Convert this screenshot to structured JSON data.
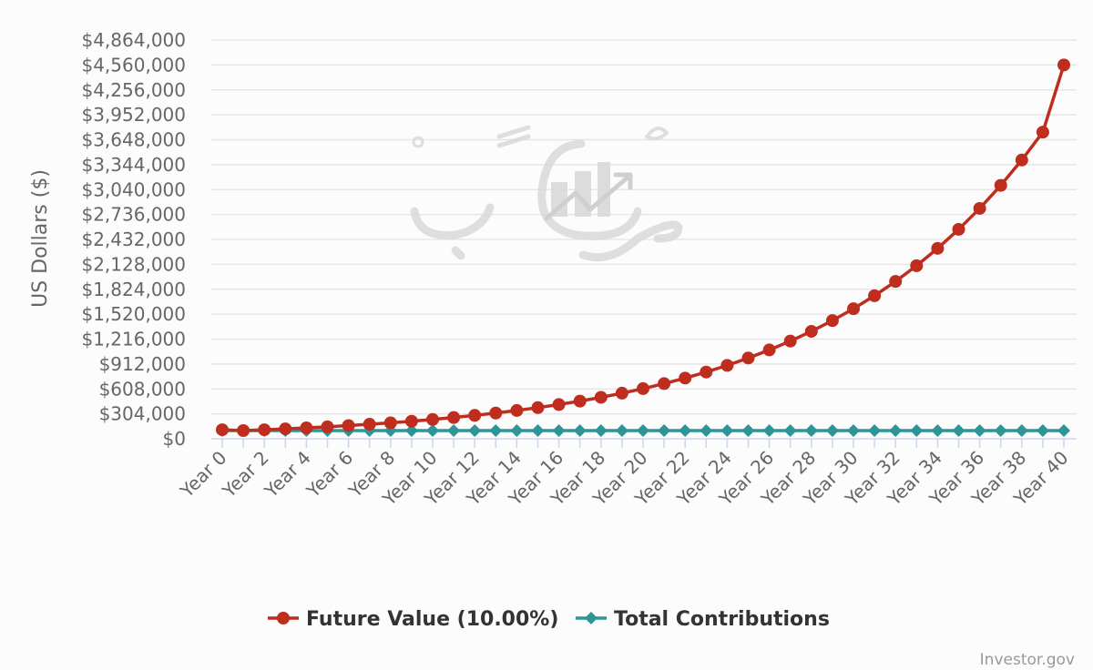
{
  "chart_data": {
    "type": "line",
    "title": "",
    "xlabel": "",
    "ylabel": "US Dollars ($)",
    "categories": [
      "Year 0",
      "Year 1",
      "Year 2",
      "Year 3",
      "Year 4",
      "Year 5",
      "Year 6",
      "Year 7",
      "Year 8",
      "Year 9",
      "Year 10",
      "Year 11",
      "Year 12",
      "Year 13",
      "Year 14",
      "Year 15",
      "Year 16",
      "Year 17",
      "Year 18",
      "Year 19",
      "Year 20",
      "Year 21",
      "Year 22",
      "Year 23",
      "Year 24",
      "Year 25",
      "Year 26",
      "Year 27",
      "Year 28",
      "Year 29",
      "Year 30",
      "Year 31",
      "Year 32",
      "Year 33",
      "Year 34",
      "Year 35",
      "Year 36",
      "Year 37",
      "Year 38",
      "Year 39",
      "Year 40"
    ],
    "x_tick_labels": [
      "Year 0",
      "Year 2",
      "Year 4",
      "Year 6",
      "Year 8",
      "Year 10",
      "Year 12",
      "Year 14",
      "Year 16",
      "Year 18",
      "Year 20",
      "Year 22",
      "Year 24",
      "Year 26",
      "Year 28",
      "Year 30",
      "Year 32",
      "Year 34",
      "Year 36",
      "Year 38",
      "Year 40"
    ],
    "y_tick_labels": [
      "$0",
      "$304,000",
      "$608,000",
      "$912,000",
      "$1,216,000",
      "$1,520,000",
      "$1,824,000",
      "$2,128,000",
      "$2,432,000",
      "$2,736,000",
      "$3,040,000",
      "$3,344,000",
      "$3,648,000",
      "$3,952,000",
      "$4,256,000",
      "$4,560,000",
      "$4,864,000"
    ],
    "ylim": [
      0,
      4864000
    ],
    "grid": true,
    "legend_position": "bottom-center",
    "series": [
      {
        "name": "Future Value (10.00%)",
        "color": "#bf2d1e",
        "marker": "circle",
        "values": [
          110000,
          100000,
          110000,
          121000,
          133100,
          146410,
          161051,
          177156,
          194872,
          214359,
          235795,
          259374,
          285312,
          313843,
          345227,
          379750,
          417725,
          459497,
          505447,
          555992,
          611591,
          672750,
          740025,
          814028,
          895430,
          984973,
          1083471,
          1191818,
          1310999,
          1442099,
          1586309,
          1744940,
          1919434,
          2111378,
          2322515,
          2554767,
          2810244,
          3091268,
          3400395,
          3740435,
          4560000
        ]
      },
      {
        "name": "Total Contributions",
        "color": "#2e9597",
        "marker": "diamond",
        "values": [
          100000,
          100000,
          100000,
          100000,
          100000,
          100000,
          100000,
          100000,
          100000,
          100000,
          100000,
          100000,
          100000,
          100000,
          100000,
          100000,
          100000,
          100000,
          100000,
          100000,
          100000,
          100000,
          100000,
          100000,
          100000,
          100000,
          100000,
          100000,
          100000,
          100000,
          100000,
          100000,
          100000,
          100000,
          100000,
          100000,
          100000,
          100000,
          100000,
          100000,
          100000
        ]
      }
    ]
  },
  "credit": "Investor.gov",
  "colors": {
    "grid": "#e6e6e6",
    "axis": "#ccd6eb",
    "text": "#666666",
    "watermark": "#d9d9d9"
  }
}
